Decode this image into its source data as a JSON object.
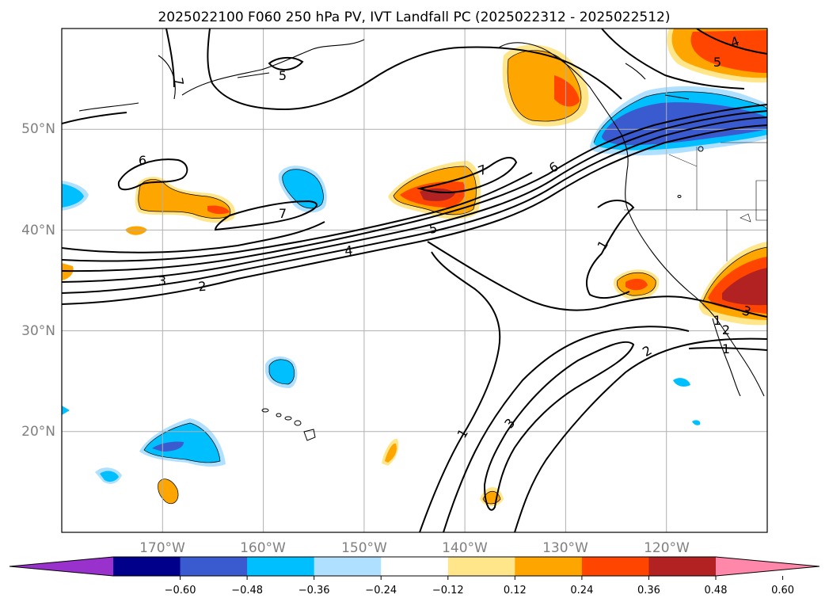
{
  "title": "2025022100 F060 250 hPa PV, IVT Landfall PC (2025022312 - 2025022512)",
  "map": {
    "projection": "PlateCarree",
    "extent_lon": [
      -180,
      -110
    ],
    "extent_lat": [
      10,
      60
    ],
    "lat_labels": [
      "20°N",
      "30°N",
      "40°N",
      "50°N"
    ],
    "lon_labels": [
      "170°W",
      "160°W",
      "150°W",
      "140°W",
      "130°W",
      "120°W"
    ],
    "contour_field": "250 hPa PV (PVU)",
    "contour_labels": [
      "7",
      "5",
      "6",
      "7",
      "6",
      "7",
      "5",
      "4",
      "3",
      "2",
      "1",
      "1",
      "2",
      "3",
      "1",
      "2",
      "1",
      "4",
      "5",
      "3"
    ],
    "colors": {
      "pos_012": "#ffe68a",
      "pos_024": "#ffa500",
      "pos_036": "#ff4500",
      "pos_048": "#b22222",
      "neg_024": "#b0e0ff",
      "neg_036": "#00bfff",
      "neg_048": "#3a5bd0",
      "neg_060": "#000090"
    }
  },
  "colorbar": {
    "ticks": [
      "−0.60",
      "−0.48",
      "−0.36",
      "−0.24",
      "−0.12",
      "0.12",
      "0.24",
      "0.36",
      "0.48",
      "0.60"
    ],
    "colors": [
      "#9932cc",
      "#00008b",
      "#3a5bd0",
      "#00bfff",
      "#b0e0ff",
      "#ffffff",
      "#ffe68a",
      "#ffa500",
      "#ff4500",
      "#b22222",
      "#ff88aa"
    ]
  }
}
